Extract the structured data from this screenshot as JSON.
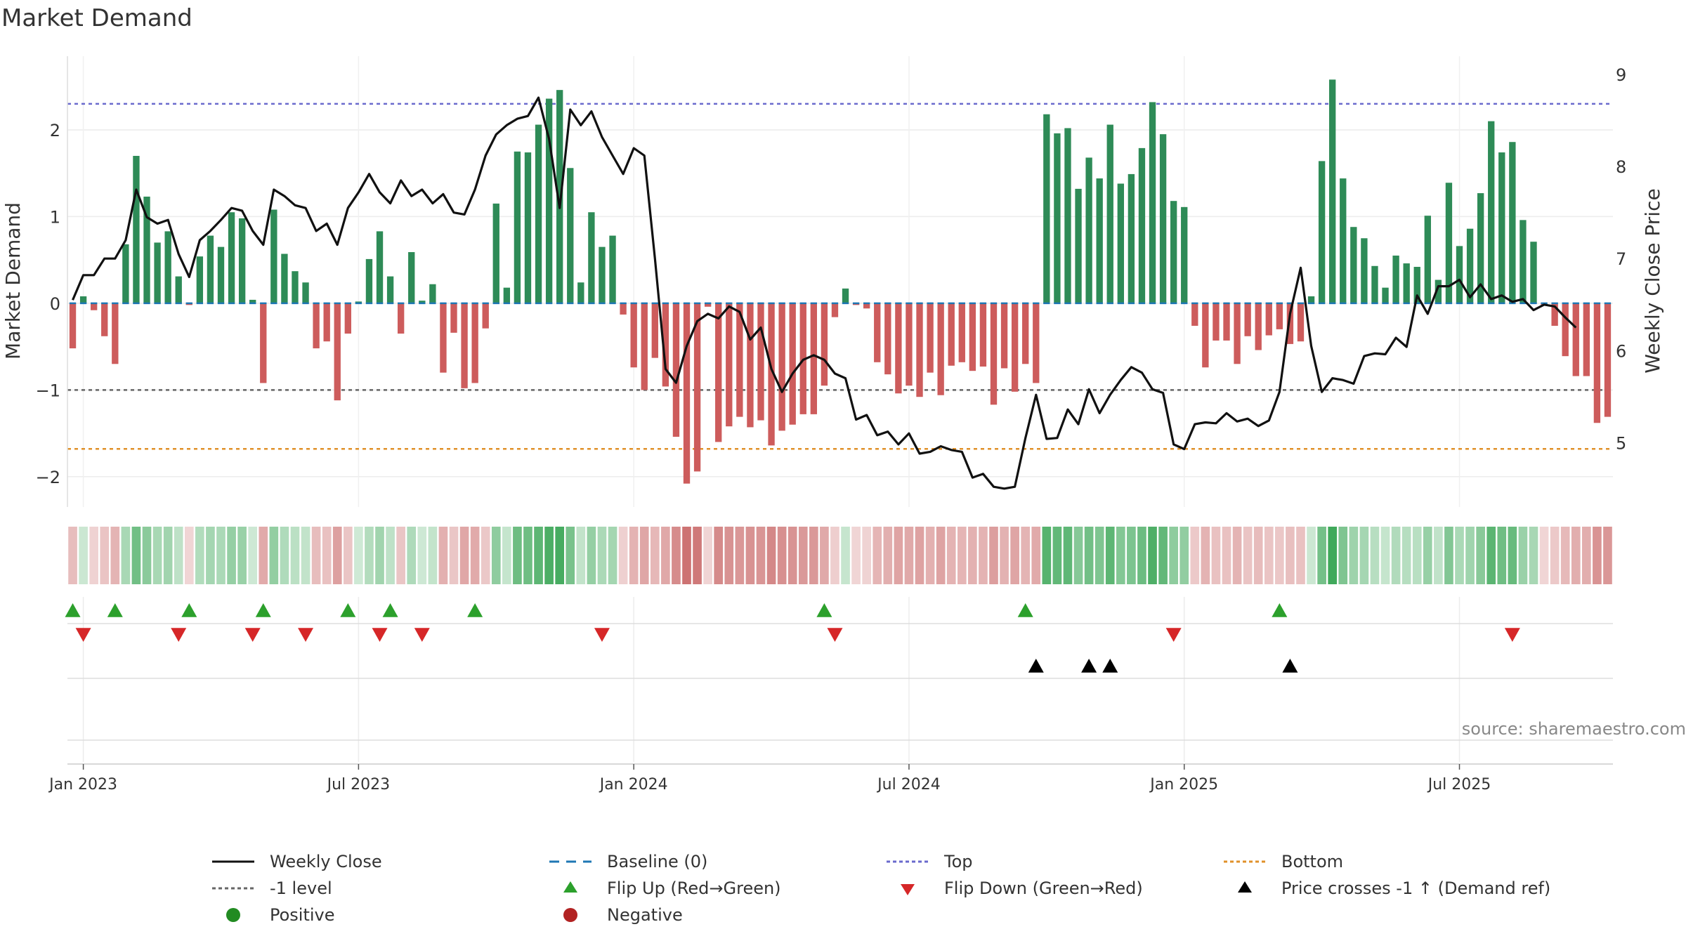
{
  "title": "Market Demand",
  "source": "source: sharemaestro.com",
  "colors": {
    "positive": "#2e8b57",
    "negative": "#cd5c5c",
    "price": "#111111",
    "top": "#6a6acd",
    "bottom": "#e0912a",
    "minus1": "#666666",
    "baseline": "#1f77b4",
    "flip_up": "#2ca02c",
    "flip_down": "#d62728",
    "cross": "#000000",
    "legend_positive": "#228b22",
    "legend_negative": "#b22222"
  },
  "chart_data": {
    "type": "bar+line",
    "ylabel": "Market Demand",
    "y2label": "Weekly Close Price",
    "ylim": [
      -2.35,
      2.85
    ],
    "y2lim": [
      4.3,
      9.2
    ],
    "yticks": [
      -2,
      -1,
      0,
      1,
      2
    ],
    "yticklabels": [
      "−2",
      "−1",
      "0",
      "1",
      "2"
    ],
    "y2ticks": [
      5,
      6,
      7,
      8,
      9
    ],
    "y2ticklabels": [
      "5",
      "6",
      "7",
      "8",
      "9"
    ],
    "xtick_labels": [
      "Jan 2023",
      "Jul 2023",
      "Jan 2024",
      "Jul 2024",
      "Jan 2025",
      "Jul 2025"
    ],
    "xtick_weeks": [
      1,
      27,
      53,
      79,
      105,
      131
    ],
    "reference_lines": {
      "top": 2.3,
      "minus1": -1.0,
      "bottom": -1.68,
      "baseline": 0
    },
    "demand": [
      -0.52,
      0.08,
      -0.08,
      -0.38,
      -0.7,
      0.68,
      1.7,
      1.23,
      0.7,
      0.83,
      0.31,
      -0.02,
      0.54,
      0.78,
      0.65,
      1.05,
      0.98,
      0.04,
      -0.92,
      1.08,
      0.57,
      0.37,
      0.24,
      -0.52,
      -0.44,
      -1.12,
      -0.35,
      0.02,
      0.51,
      0.83,
      0.31,
      -0.35,
      0.59,
      0.03,
      0.22,
      -0.8,
      -0.34,
      -0.98,
      -0.92,
      -0.29,
      1.15,
      0.18,
      1.75,
      1.74,
      2.06,
      2.36,
      2.46,
      1.56,
      0.24,
      1.05,
      0.65,
      0.78,
      -0.13,
      -0.74,
      -1.0,
      -0.63,
      -0.96,
      -1.54,
      -2.08,
      -1.94,
      -0.04,
      -1.6,
      -1.42,
      -1.31,
      -1.43,
      -1.35,
      -1.64,
      -1.47,
      -1.4,
      -1.28,
      -1.28,
      -0.95,
      -0.16,
      0.17,
      -0.02,
      -0.06,
      -0.68,
      -0.82,
      -1.04,
      -0.95,
      -1.08,
      -0.8,
      -1.06,
      -0.72,
      -0.68,
      -0.78,
      -0.73,
      -1.17,
      -0.75,
      -1.02,
      -0.7,
      -0.92,
      2.18,
      1.96,
      2.02,
      1.32,
      1.68,
      1.44,
      2.06,
      1.38,
      1.49,
      1.79,
      2.32,
      1.95,
      1.18,
      1.11,
      -0.26,
      -0.74,
      -0.43,
      -0.43,
      -0.7,
      -0.38,
      -0.54,
      -0.37,
      -0.3,
      -0.47,
      -0.44,
      0.08,
      1.64,
      2.58,
      1.44,
      0.88,
      0.75,
      0.43,
      0.18,
      0.55,
      0.46,
      0.42,
      1.01,
      0.27,
      1.39,
      0.66,
      0.86,
      1.27,
      2.1,
      1.74,
      1.86,
      0.96,
      0.71,
      -0.02,
      -0.26,
      -0.61,
      -0.84,
      -0.84,
      -1.38,
      -1.31
    ],
    "price": [
      6.55,
      6.82,
      6.82,
      7.0,
      7.0,
      7.2,
      7.75,
      7.45,
      7.38,
      7.42,
      7.05,
      6.8,
      7.2,
      7.3,
      7.42,
      7.55,
      7.52,
      7.3,
      7.15,
      7.75,
      7.68,
      7.58,
      7.55,
      7.3,
      7.38,
      7.15,
      7.55,
      7.72,
      7.92,
      7.72,
      7.6,
      7.85,
      7.68,
      7.75,
      7.6,
      7.7,
      7.5,
      7.48,
      7.75,
      8.12,
      8.35,
      8.45,
      8.52,
      8.55,
      8.75,
      8.3,
      7.55,
      8.62,
      8.45,
      8.6,
      8.32,
      8.12,
      7.92,
      8.2,
      8.12,
      7.0,
      5.8,
      5.65,
      6.05,
      6.32,
      6.4,
      6.35,
      6.48,
      6.42,
      6.12,
      6.25,
      5.8,
      5.55,
      5.75,
      5.9,
      5.95,
      5.9,
      5.75,
      5.7,
      5.25,
      5.3,
      5.08,
      5.12,
      4.98,
      5.1,
      4.88,
      4.9,
      4.96,
      4.92,
      4.9,
      4.62,
      4.66,
      4.52,
      4.5,
      4.52,
      5.05,
      5.52,
      5.04,
      5.05,
      5.36,
      5.2,
      5.58,
      5.32,
      5.52,
      5.68,
      5.82,
      5.76,
      5.58,
      5.54,
      4.98,
      4.93,
      5.2,
      5.22,
      5.21,
      5.32,
      5.23,
      5.26,
      5.18,
      5.24,
      5.55,
      6.4,
      6.9,
      6.05,
      5.55,
      5.7,
      5.68,
      5.64,
      5.94,
      5.97,
      5.96,
      6.14,
      6.04,
      6.6,
      6.4,
      6.7,
      6.7,
      6.77,
      6.58,
      6.72,
      6.56,
      6.6,
      6.53,
      6.56,
      6.44,
      6.5,
      6.48,
      6.36,
      6.25
    ],
    "flip_up_weeks": [
      0,
      4,
      11,
      18,
      26,
      30,
      38,
      71,
      90,
      114
    ],
    "flip_down_weeks": [
      1,
      10,
      17,
      22,
      29,
      33,
      50,
      72,
      104,
      136
    ],
    "cross_weeks": [
      91,
      96,
      98,
      115
    ],
    "legend": [
      {
        "key": "price",
        "label": "Weekly Close"
      },
      {
        "key": "baseline",
        "label": "Baseline (0)"
      },
      {
        "key": "top",
        "label": "Top"
      },
      {
        "key": "bottom",
        "label": "Bottom"
      },
      {
        "key": "minus1",
        "label": "-1 level"
      },
      {
        "key": "flip_up",
        "label": "Flip Up (Red→Green)"
      },
      {
        "key": "flip_down",
        "label": "Flip Down (Green→Red)"
      },
      {
        "key": "cross",
        "label": "Price crosses -1 ↑ (Demand ref)"
      },
      {
        "key": "legend_positive",
        "label": "Positive"
      },
      {
        "key": "legend_negative",
        "label": "Negative"
      }
    ]
  }
}
